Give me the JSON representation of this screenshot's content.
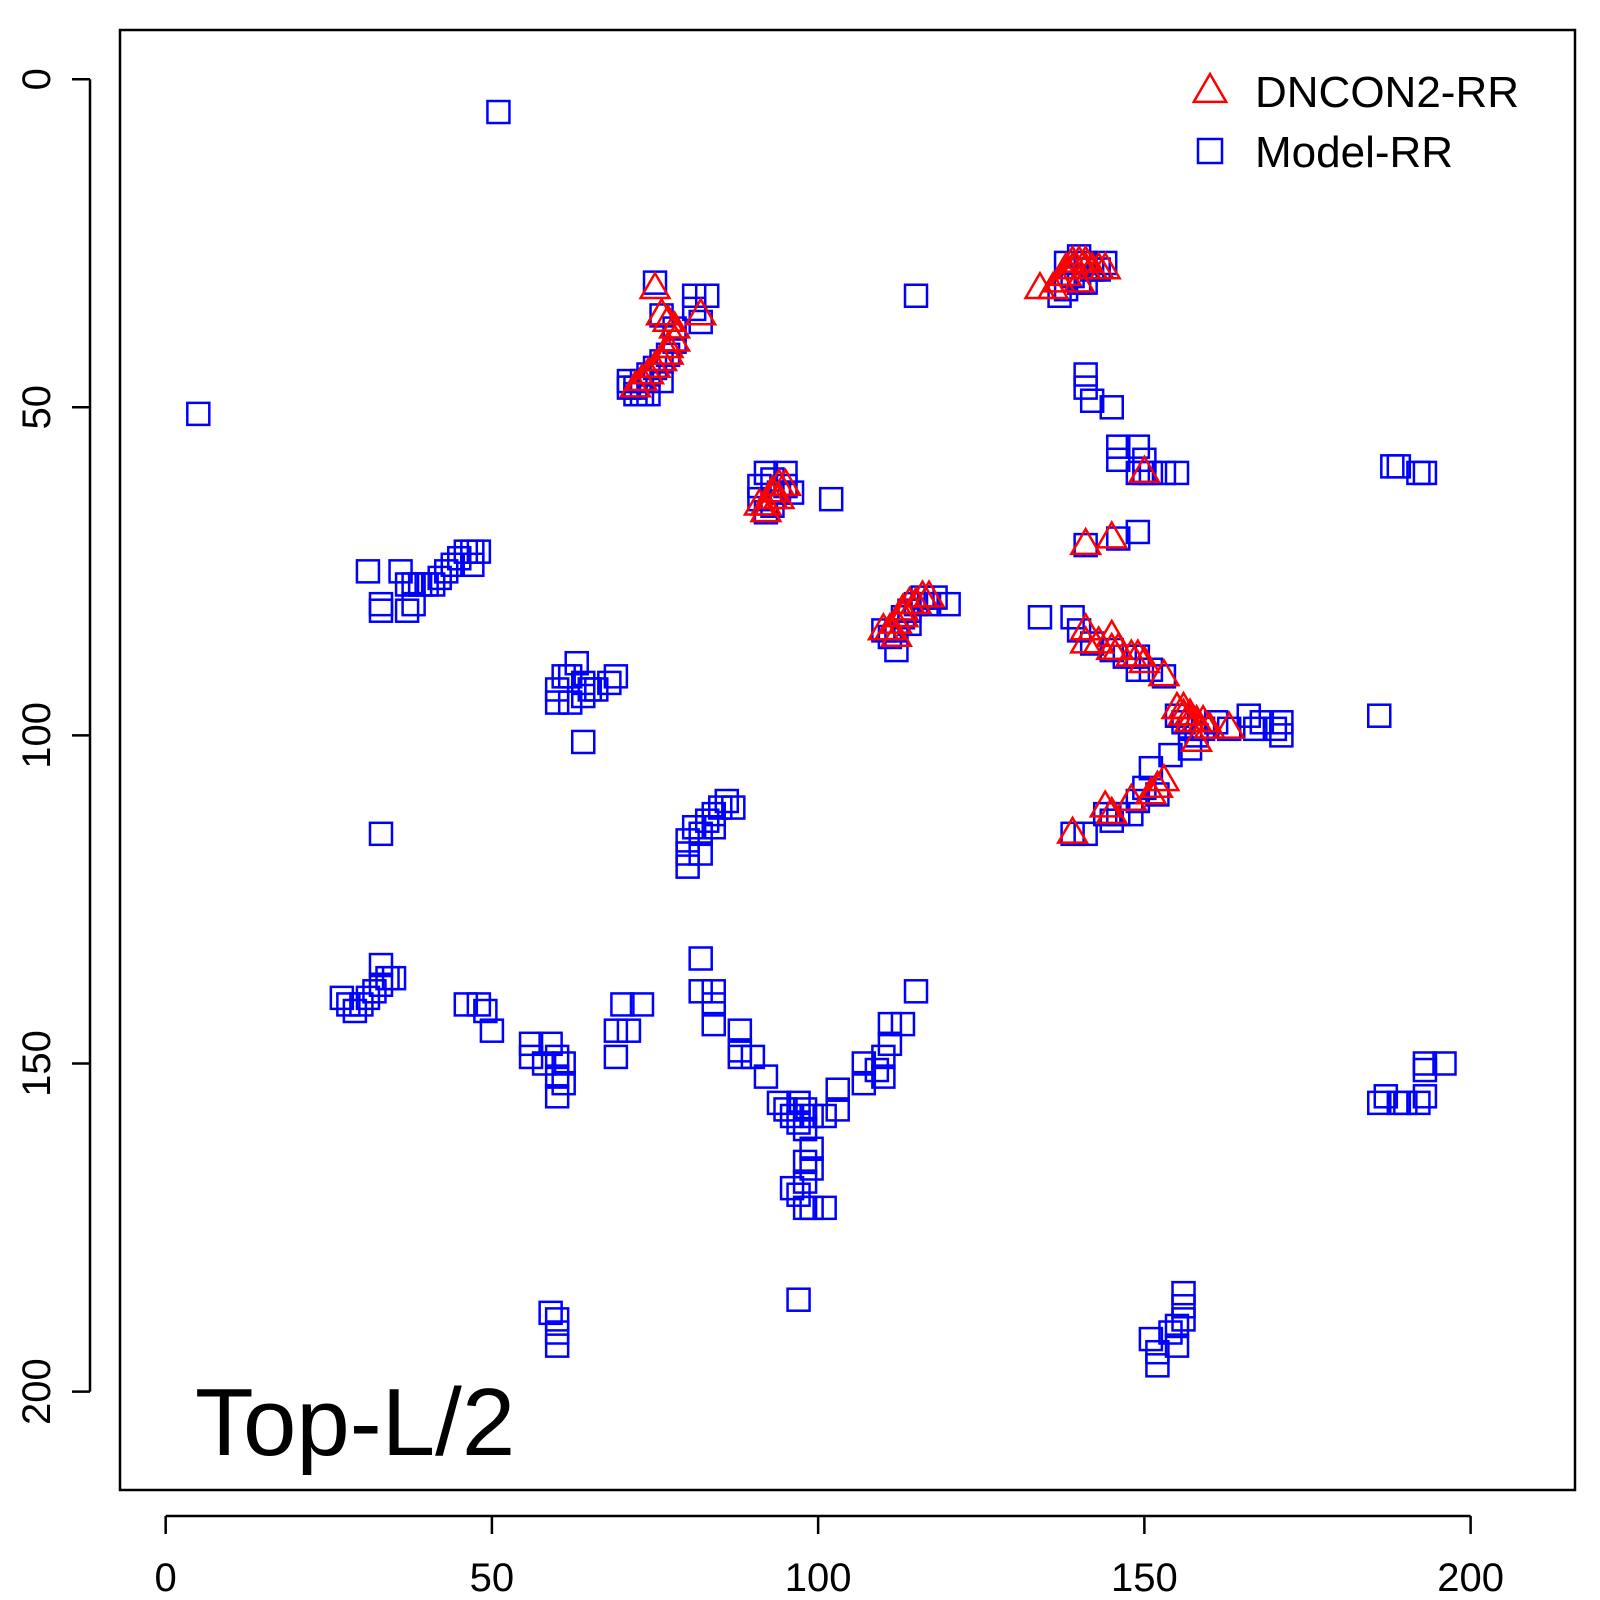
{
  "chart_data": {
    "type": "scatter",
    "title": "",
    "xlabel": "",
    "ylabel": "",
    "xlim": [
      -7,
      216
    ],
    "ylim": [
      -7.5,
      215
    ],
    "y_inverted": true,
    "x_ticks": [
      0,
      50,
      100,
      150,
      200
    ],
    "y_ticks": [
      0,
      50,
      100,
      150,
      200
    ],
    "grid": false,
    "legend_position": "top-right",
    "annotation": "Top-L/2",
    "series": [
      {
        "name": "DNCON2-RR",
        "marker": "triangle",
        "color": "#ff0000",
        "points": [
          [
            75,
            32
          ],
          [
            76,
            36
          ],
          [
            77,
            37
          ],
          [
            78,
            38
          ],
          [
            78,
            40
          ],
          [
            77,
            41
          ],
          [
            77,
            42
          ],
          [
            76,
            43
          ],
          [
            75,
            44
          ],
          [
            74,
            45
          ],
          [
            73,
            46
          ],
          [
            72,
            47
          ],
          [
            82,
            36
          ],
          [
            91,
            65
          ],
          [
            92,
            66
          ],
          [
            92,
            65
          ],
          [
            93,
            64
          ],
          [
            93,
            63
          ],
          [
            94,
            62
          ],
          [
            95,
            62
          ],
          [
            94,
            64
          ],
          [
            110,
            84
          ],
          [
            111,
            84
          ],
          [
            112,
            83
          ],
          [
            113,
            82
          ],
          [
            113,
            81
          ],
          [
            114,
            80
          ],
          [
            115,
            80
          ],
          [
            116,
            79
          ],
          [
            117,
            79
          ],
          [
            112,
            85
          ],
          [
            134,
            32
          ],
          [
            136,
            32
          ],
          [
            137,
            31
          ],
          [
            138,
            30
          ],
          [
            138,
            29
          ],
          [
            139,
            29
          ],
          [
            139,
            28
          ],
          [
            140,
            28
          ],
          [
            141,
            28
          ],
          [
            141,
            29
          ],
          [
            142,
            29
          ],
          [
            143,
            29
          ],
          [
            144,
            29
          ],
          [
            140,
            31
          ],
          [
            150,
            60
          ],
          [
            141,
            71
          ],
          [
            145,
            70
          ],
          [
            141,
            84
          ],
          [
            141,
            86
          ],
          [
            143,
            86
          ],
          [
            145,
            85
          ],
          [
            145,
            87
          ],
          [
            146,
            87
          ],
          [
            148,
            88
          ],
          [
            149,
            88
          ],
          [
            150,
            89
          ],
          [
            153,
            91
          ],
          [
            155,
            96
          ],
          [
            156,
            96
          ],
          [
            156,
            97
          ],
          [
            157,
            97
          ],
          [
            157,
            98
          ],
          [
            158,
            98
          ],
          [
            159,
            98
          ],
          [
            160,
            99
          ],
          [
            158,
            101
          ],
          [
            163,
            99
          ],
          [
            139,
            115
          ],
          [
            144,
            111
          ],
          [
            145,
            112
          ],
          [
            148,
            110
          ],
          [
            151,
            109
          ],
          [
            152,
            108
          ],
          [
            153,
            107
          ]
        ]
      },
      {
        "name": "Model-RR",
        "marker": "square",
        "color": "#0000ff",
        "points": [
          [
            51,
            5
          ],
          [
            5,
            51
          ],
          [
            75,
            31
          ],
          [
            81,
            33
          ],
          [
            83,
            33
          ],
          [
            81,
            35
          ],
          [
            82,
            37
          ],
          [
            76,
            36
          ],
          [
            78,
            38
          ],
          [
            78,
            40
          ],
          [
            77,
            42
          ],
          [
            76,
            43
          ],
          [
            75,
            44
          ],
          [
            74,
            45
          ],
          [
            73,
            46
          ],
          [
            72,
            47
          ],
          [
            71,
            47
          ],
          [
            71,
            46
          ],
          [
            72,
            48
          ],
          [
            73,
            48
          ],
          [
            74,
            48
          ],
          [
            76,
            46
          ],
          [
            91,
            62
          ],
          [
            91,
            64
          ],
          [
            92,
            66
          ],
          [
            93,
            65
          ],
          [
            94,
            63
          ],
          [
            95,
            62
          ],
          [
            96,
            63
          ],
          [
            93,
            61
          ],
          [
            92,
            60
          ],
          [
            95,
            60
          ],
          [
            102,
            64
          ],
          [
            115,
            33
          ],
          [
            110,
            84
          ],
          [
            111,
            85
          ],
          [
            112,
            84
          ],
          [
            113,
            82
          ],
          [
            114,
            81
          ],
          [
            115,
            80
          ],
          [
            116,
            79
          ],
          [
            117,
            80
          ],
          [
            118,
            79
          ],
          [
            120,
            80
          ],
          [
            112,
            87
          ],
          [
            114,
            83
          ],
          [
            138,
            28
          ],
          [
            140,
            27
          ],
          [
            141,
            28
          ],
          [
            142,
            29
          ],
          [
            143,
            29
          ],
          [
            144,
            28
          ],
          [
            139,
            30
          ],
          [
            138,
            32
          ],
          [
            137,
            33
          ],
          [
            140,
            31
          ],
          [
            141,
            31
          ],
          [
            141,
            45
          ],
          [
            141,
            47
          ],
          [
            142,
            49
          ],
          [
            145,
            50
          ],
          [
            146,
            56
          ],
          [
            146,
            58
          ],
          [
            149,
            56
          ],
          [
            150,
            58
          ],
          [
            150,
            60
          ],
          [
            149,
            60
          ],
          [
            151,
            60
          ],
          [
            153,
            60
          ],
          [
            155,
            60
          ],
          [
            149,
            69
          ],
          [
            141,
            71
          ],
          [
            146,
            70
          ],
          [
            134,
            82
          ],
          [
            139,
            82
          ],
          [
            140,
            84
          ],
          [
            142,
            86
          ],
          [
            145,
            87
          ],
          [
            147,
            88
          ],
          [
            149,
            88
          ],
          [
            149,
            90
          ],
          [
            151,
            90
          ],
          [
            153,
            91
          ],
          [
            155,
            97
          ],
          [
            156,
            98
          ],
          [
            157,
            99
          ],
          [
            158,
            100
          ],
          [
            159,
            99
          ],
          [
            161,
            98
          ],
          [
            163,
            99
          ],
          [
            166,
            97
          ],
          [
            168,
            98
          ],
          [
            170,
            99
          ],
          [
            171,
            100
          ],
          [
            171,
            98
          ],
          [
            167,
            99
          ],
          [
            186,
            97
          ],
          [
            157,
            102
          ],
          [
            154,
            103
          ],
          [
            151,
            105
          ],
          [
            150,
            108
          ],
          [
            149,
            110
          ],
          [
            148,
            112
          ],
          [
            146,
            112
          ],
          [
            145,
            113
          ],
          [
            144,
            112
          ],
          [
            141,
            115
          ],
          [
            139,
            115
          ],
          [
            152,
            109
          ],
          [
            188,
            59
          ],
          [
            189,
            59
          ],
          [
            192,
            60
          ],
          [
            193,
            60
          ],
          [
            31,
            75
          ],
          [
            36,
            75
          ],
          [
            37,
            77
          ],
          [
            38,
            77
          ],
          [
            39,
            77
          ],
          [
            40,
            77
          ],
          [
            41,
            77
          ],
          [
            42,
            76
          ],
          [
            43,
            75
          ],
          [
            44,
            74
          ],
          [
            45,
            73
          ],
          [
            46,
            72
          ],
          [
            47,
            72
          ],
          [
            48,
            72
          ],
          [
            47,
            74
          ],
          [
            33,
            81
          ],
          [
            37,
            81
          ],
          [
            38,
            80
          ],
          [
            33,
            80
          ],
          [
            60,
            93
          ],
          [
            61,
            91
          ],
          [
            62,
            91
          ],
          [
            63,
            89
          ],
          [
            64,
            92
          ],
          [
            65,
            93
          ],
          [
            66,
            93
          ],
          [
            68,
            92
          ],
          [
            69,
            91
          ],
          [
            60,
            95
          ],
          [
            62,
            95
          ],
          [
            64,
            94
          ],
          [
            64,
            101
          ],
          [
            80,
            116
          ],
          [
            80,
            118
          ],
          [
            80,
            120
          ],
          [
            81,
            114
          ],
          [
            82,
            115
          ],
          [
            83,
            113
          ],
          [
            84,
            112
          ],
          [
            85,
            111
          ],
          [
            86,
            110
          ],
          [
            87,
            111
          ],
          [
            84,
            114
          ],
          [
            82,
            118
          ],
          [
            33,
            115
          ],
          [
            27,
            140
          ],
          [
            28,
            141
          ],
          [
            29,
            142
          ],
          [
            30,
            141
          ],
          [
            31,
            140
          ],
          [
            32,
            139
          ],
          [
            33,
            138
          ],
          [
            34,
            137
          ],
          [
            35,
            137
          ],
          [
            33,
            135
          ],
          [
            46,
            141
          ],
          [
            48,
            141
          ],
          [
            49,
            142
          ],
          [
            50,
            145
          ],
          [
            56,
            147
          ],
          [
            59,
            147
          ],
          [
            56,
            149
          ],
          [
            58,
            150
          ],
          [
            60,
            149
          ],
          [
            61,
            150
          ],
          [
            60,
            152
          ],
          [
            61,
            153
          ],
          [
            60,
            155
          ],
          [
            69,
            145
          ],
          [
            71,
            145
          ],
          [
            70,
            141
          ],
          [
            73,
            141
          ],
          [
            69,
            149
          ],
          [
            82,
            134
          ],
          [
            82,
            139
          ],
          [
            84,
            139
          ],
          [
            84,
            141
          ],
          [
            84,
            144
          ],
          [
            88,
            145
          ],
          [
            88,
            148
          ],
          [
            88,
            149
          ],
          [
            90,
            149
          ],
          [
            92,
            152
          ],
          [
            94,
            156
          ],
          [
            95,
            157
          ],
          [
            96,
            158
          ],
          [
            97,
            156
          ],
          [
            98,
            157
          ],
          [
            99,
            158
          ],
          [
            97,
            159
          ],
          [
            98,
            160
          ],
          [
            99,
            163
          ],
          [
            98,
            165
          ],
          [
            99,
            166
          ],
          [
            98,
            168
          ],
          [
            96,
            169
          ],
          [
            97,
            170
          ],
          [
            98,
            172
          ],
          [
            99,
            172
          ],
          [
            101,
            172
          ],
          [
            101,
            158
          ],
          [
            103,
            154
          ],
          [
            103,
            157
          ],
          [
            107,
            150
          ],
          [
            107,
            153
          ],
          [
            109,
            151
          ],
          [
            110,
            152
          ],
          [
            110,
            149
          ],
          [
            111,
            147
          ],
          [
            111,
            144
          ],
          [
            113,
            144
          ],
          [
            115,
            139
          ],
          [
            97,
            186
          ],
          [
            59,
            188
          ],
          [
            60,
            189
          ],
          [
            60,
            191
          ],
          [
            60,
            193
          ],
          [
            156,
            185
          ],
          [
            156,
            187
          ],
          [
            156,
            189
          ],
          [
            155,
            190
          ],
          [
            154,
            191
          ],
          [
            155,
            193
          ],
          [
            151,
            192
          ],
          [
            152,
            194
          ],
          [
            152,
            196
          ],
          [
            186,
            156
          ],
          [
            187,
            155
          ],
          [
            189,
            156
          ],
          [
            190,
            156
          ],
          [
            192,
            156
          ],
          [
            193,
            155
          ],
          [
            193,
            151
          ],
          [
            193,
            150
          ],
          [
            196,
            150
          ]
        ]
      }
    ]
  }
}
